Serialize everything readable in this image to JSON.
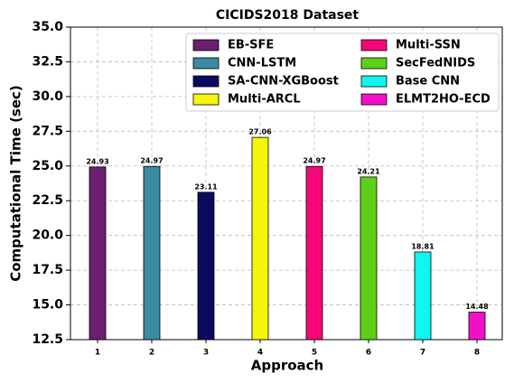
{
  "chart_data": {
    "type": "bar",
    "title": "CICIDS2018 Dataset",
    "x_label": "Approach",
    "y_label": "Computational Time (sec)",
    "categories": [
      "1",
      "2",
      "3",
      "4",
      "5",
      "6",
      "7",
      "8"
    ],
    "series": [
      {
        "name": "EB-SFE",
        "color": "#6b1f6e",
        "values": [
          24.93,
          null,
          null,
          null,
          null,
          null,
          null,
          null
        ]
      },
      {
        "name": "CNN-LSTM",
        "color": "#3a8aa0",
        "values": [
          null,
          24.97,
          null,
          null,
          null,
          null,
          null,
          null
        ]
      },
      {
        "name": "SA-CNN-XGBoost",
        "color": "#0a0a5e",
        "values": [
          null,
          null,
          23.11,
          null,
          null,
          null,
          null,
          null
        ]
      },
      {
        "name": "Multi-ARCL",
        "color": "#f5f50a",
        "values": [
          null,
          null,
          null,
          27.06,
          null,
          null,
          null,
          null
        ]
      },
      {
        "name": "Multi-SSN",
        "color": "#f5077a",
        "values": [
          null,
          null,
          null,
          null,
          24.97,
          null,
          null,
          null
        ]
      },
      {
        "name": "SecFedNIDS",
        "color": "#5fcf1a",
        "values": [
          null,
          null,
          null,
          null,
          null,
          24.21,
          null,
          null
        ]
      },
      {
        "name": "Base CNN",
        "color": "#10f5f0",
        "values": [
          null,
          null,
          null,
          null,
          null,
          null,
          18.81,
          null
        ]
      },
      {
        "name": "ELMT2HO-ECD",
        "color": "#f010c8",
        "values": [
          null,
          null,
          null,
          null,
          null,
          null,
          null,
          14.48
        ]
      }
    ],
    "ylim": [
      12.5,
      35.0
    ],
    "yticks": [
      12.5,
      {
        "value": 15,
        "label": "15.0"
      },
      17.5,
      {
        "value": 20,
        "label": "20.0"
      },
      22.5,
      {
        "value": 25,
        "label": "25.0"
      },
      27.5,
      {
        "value": 30,
        "label": "30.0"
      },
      32.5,
      {
        "value": 35,
        "label": "35.0"
      }
    ],
    "grid": true,
    "legend": "upper right"
  }
}
